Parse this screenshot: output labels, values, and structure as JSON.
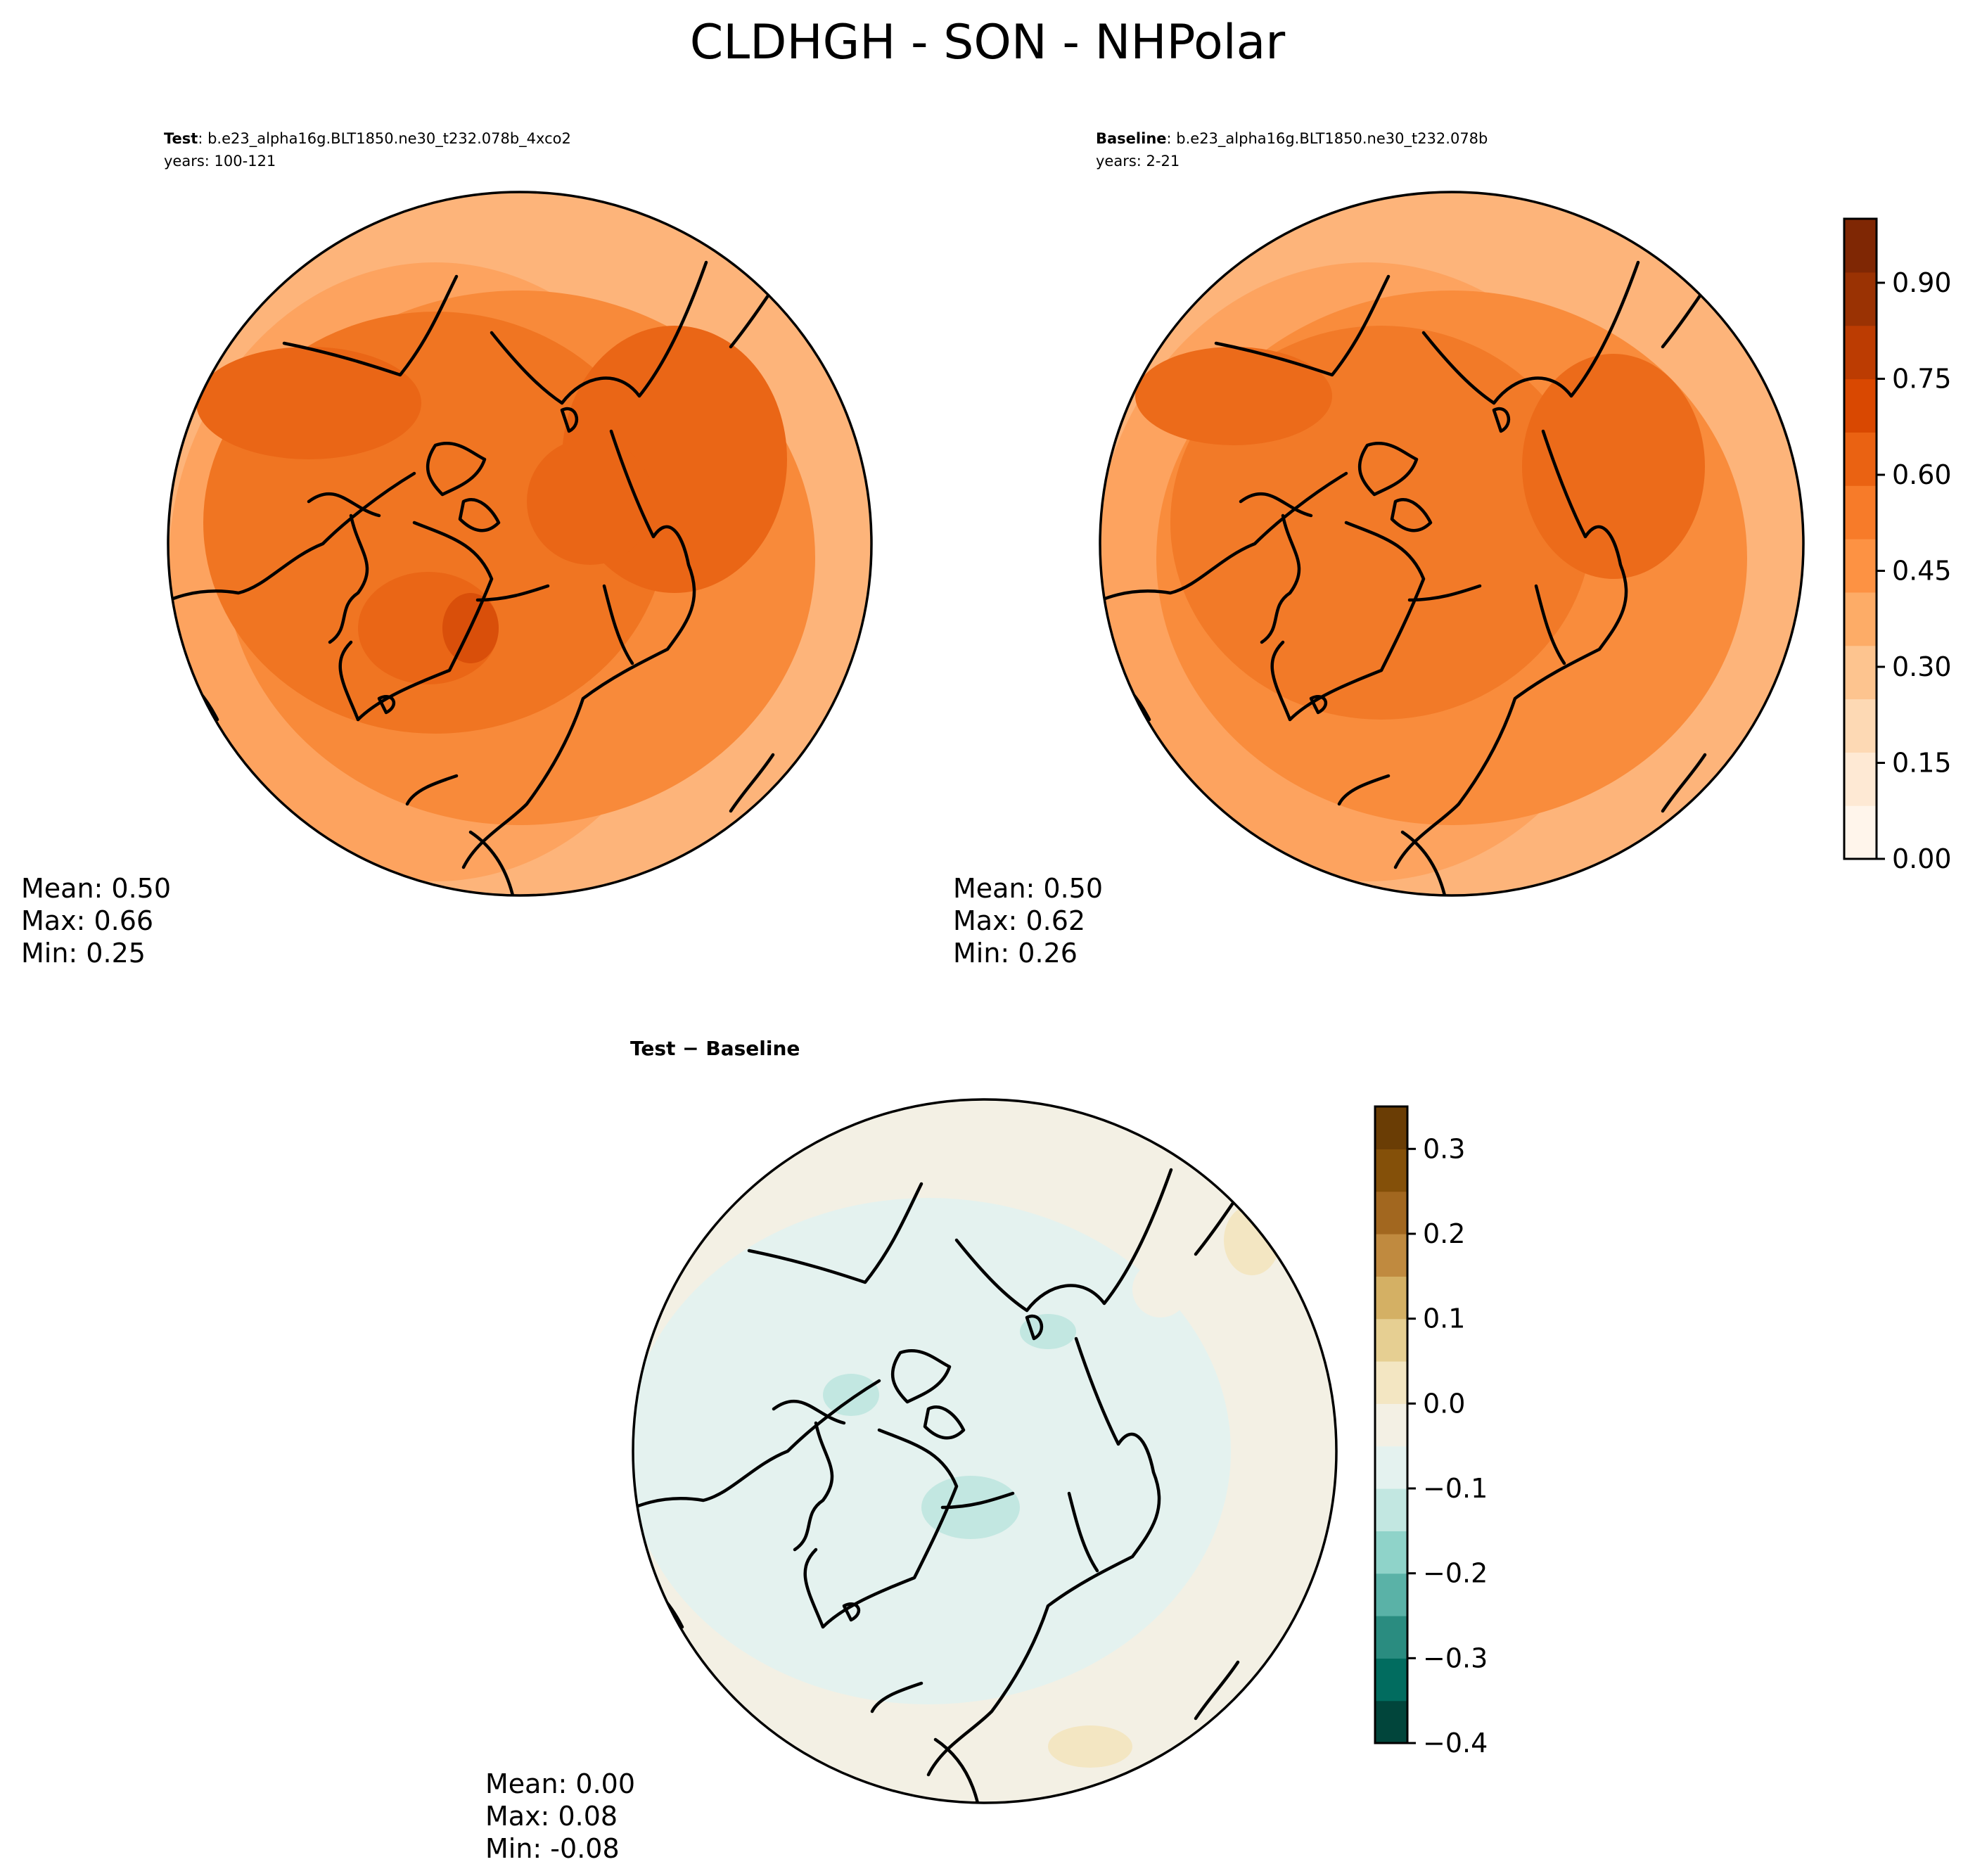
{
  "figure": {
    "title": "CLDHGH - SON - NHPolar"
  },
  "panels": {
    "test": {
      "label": "Test",
      "case": ": b.e23_alpha16g.BLT1850.ne30_t232.078b_4xco2",
      "years": "years: 100-121",
      "stats": {
        "mean": "Mean:  0.50",
        "max": "Max:  0.66",
        "min": "Min:  0.25"
      }
    },
    "baseline": {
      "label": "Baseline",
      "case": ": b.e23_alpha16g.BLT1850.ne30_t232.078b",
      "years": "years: 2-21",
      "stats": {
        "mean": "Mean:  0.50",
        "max": "Max:  0.62",
        "min": "Min:  0.26"
      }
    },
    "diff": {
      "label": "Test − Baseline",
      "stats": {
        "mean": "Mean:  0.00",
        "max": "Max:  0.08",
        "min": "Min: -0.08"
      }
    }
  },
  "colorbars": {
    "main": {
      "ticks": [
        "0.00",
        "0.15",
        "0.30",
        "0.45",
        "0.60",
        "0.75",
        "0.90"
      ],
      "colors": [
        "#fff5eb",
        "#fee9d4",
        "#fdd9b4",
        "#fdc48f",
        "#fdac67",
        "#fd9243",
        "#f77b29",
        "#ea6212",
        "#d94801",
        "#bc3c02",
        "#9a3203",
        "#7f2704"
      ]
    },
    "diff": {
      "ticks": [
        "0.3",
        "0.2",
        "0.1",
        "0.0",
        "−0.1",
        "−0.2",
        "−0.3",
        "−0.4"
      ],
      "colors": [
        "#01453b",
        "#016c5f",
        "#2a8c80",
        "#5ab2a7",
        "#8fd3c9",
        "#c2e7e1",
        "#e4f2ef",
        "#f3f0e4",
        "#f3e6c2",
        "#e6cf92",
        "#d4b064",
        "#c08a3f",
        "#a2671f",
        "#845009",
        "#6a3d05"
      ]
    }
  },
  "map_fields": {
    "test_fill": "#f88a3a",
    "baseline_fill": "#f98c3c",
    "diff_fill": "#f3f0e4",
    "diff_positive_fill": "#e4f2ef"
  }
}
